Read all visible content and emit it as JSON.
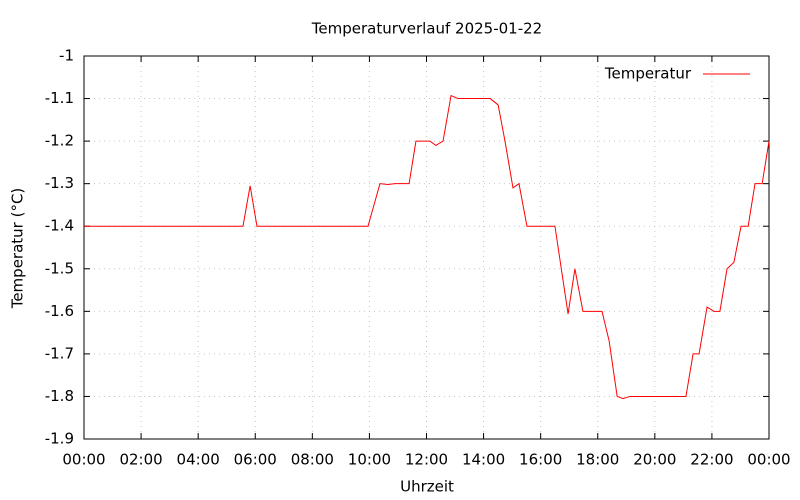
{
  "chart_data": {
    "type": "line",
    "title": "Temperaturverlauf 2025-01-22",
    "x_label": "Uhrzeit",
    "y_label": "Temperatur (°C)",
    "xlim": [
      0,
      24
    ],
    "xticks": [
      {
        "value": 0,
        "label": "00:00"
      },
      {
        "value": 2,
        "label": "02:00"
      },
      {
        "value": 4,
        "label": "04:00"
      },
      {
        "value": 6,
        "label": "06:00"
      },
      {
        "value": 8,
        "label": "08:00"
      },
      {
        "value": 10,
        "label": "10:00"
      },
      {
        "value": 12,
        "label": "12:00"
      },
      {
        "value": 14,
        "label": "14:00"
      },
      {
        "value": 16,
        "label": "16:00"
      },
      {
        "value": 18,
        "label": "18:00"
      },
      {
        "value": 20,
        "label": "20:00"
      },
      {
        "value": 22,
        "label": "22:00"
      },
      {
        "value": 24,
        "label": "00:00"
      }
    ],
    "ylim": [
      -1.9,
      -1
    ],
    "yticks": [
      -1.9,
      -1.8,
      -1.7,
      -1.6,
      -1.5,
      -1.4,
      -1.3,
      -1.2,
      -1.1,
      -1
    ],
    "grid": true,
    "legend": "top-right",
    "x": [
      0,
      5.57,
      5.82,
      6.06,
      9.95,
      10.37,
      10.65,
      10.9,
      11.39,
      11.63,
      12.12,
      12.33,
      12.58,
      12.86,
      13.1,
      14.23,
      14.51,
      14.75,
      15.03,
      15.24,
      15.52,
      16.5,
      16.96,
      17.2,
      17.48,
      18.15,
      18.4,
      18.68,
      18.89,
      19.13,
      21.09,
      21.34,
      21.55,
      21.83,
      22.07,
      22.28,
      22.53,
      22.77,
      23.02,
      23.27,
      23.51,
      23.76,
      24
    ],
    "series": [
      {
        "name": "Temperatur",
        "color": "#ff0000",
        "values": [
          -1.4,
          -1.4,
          -1.305,
          -1.4,
          -1.4,
          -1.3,
          -1.302,
          -1.3,
          -1.3,
          -1.2,
          -1.2,
          -1.21,
          -1.2,
          -1.093,
          -1.1,
          -1.1,
          -1.115,
          -1.2,
          -1.31,
          -1.3,
          -1.4,
          -1.4,
          -1.606,
          -1.5,
          -1.6,
          -1.6,
          -1.67,
          -1.8,
          -1.805,
          -1.8,
          -1.8,
          -1.7,
          -1.7,
          -1.59,
          -1.6,
          -1.6,
          -1.5,
          -1.485,
          -1.4,
          -1.4,
          -1.3,
          -1.3,
          -1.2
        ]
      }
    ]
  }
}
